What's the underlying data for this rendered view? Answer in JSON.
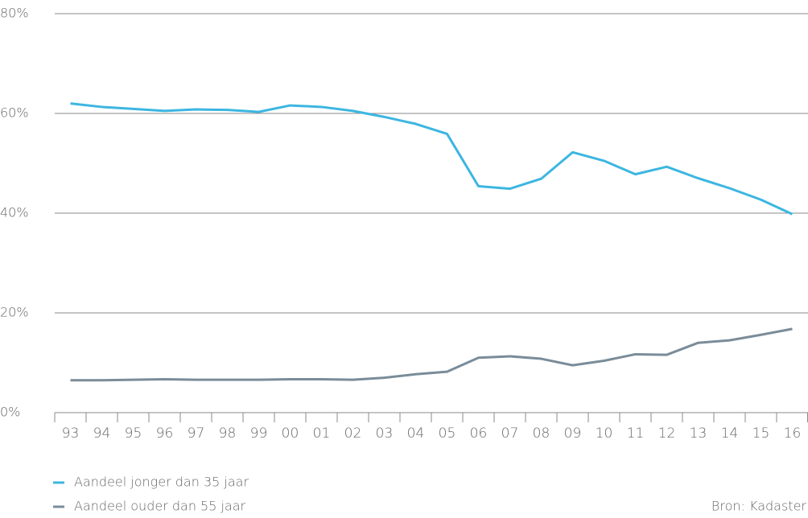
{
  "chart_data": {
    "type": "line",
    "categories": [
      "93",
      "94",
      "95",
      "96",
      "97",
      "98",
      "99",
      "00",
      "01",
      "02",
      "03",
      "04",
      "05",
      "06",
      "07",
      "08",
      "09",
      "10",
      "11",
      "12",
      "13",
      "14",
      "15",
      "16"
    ],
    "series": [
      {
        "name": "Aandeel jonger dan 35 jaar",
        "color": "#3cb6e0",
        "values": [
          62,
          61.3,
          60.9,
          60.5,
          60.8,
          60.7,
          60.3,
          61.6,
          61.3,
          60.5,
          59.3,
          57.9,
          55.9,
          45.4,
          44.9,
          46.9,
          52.2,
          50.5,
          47.8,
          49.3,
          47,
          45,
          42.7,
          39.8
        ]
      },
      {
        "name": "Aandeel ouder dan 55 jaar",
        "color": "#7a8c99",
        "values": [
          6.5,
          6.5,
          6.6,
          6.7,
          6.6,
          6.6,
          6.6,
          6.7,
          6.7,
          6.6,
          7,
          7.7,
          8.2,
          11,
          11.3,
          10.8,
          9.5,
          10.4,
          11.7,
          11.6,
          14,
          14.5,
          15.6,
          16.8
        ]
      }
    ],
    "ylim": [
      0,
      80
    ],
    "yticks": [
      {
        "value": 0,
        "label": "0%"
      },
      {
        "value": 20,
        "label": "20%"
      },
      {
        "value": 40,
        "label": "40%"
      },
      {
        "value": 60,
        "label": "60%"
      },
      {
        "value": 80,
        "label": "80%"
      }
    ],
    "grid": true,
    "source": "Bron: Kadaster"
  }
}
